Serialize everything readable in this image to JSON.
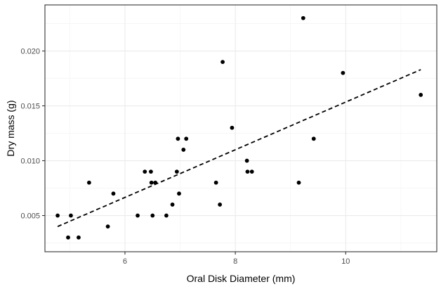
{
  "chart_data": {
    "type": "scatter",
    "title": "",
    "xlabel": "Oral Disk Diameter (mm)",
    "ylabel": "Dry mass (g)",
    "xlim": [
      4.55,
      11.65
    ],
    "ylim": [
      0.0017,
      0.0242
    ],
    "x_major_ticks": [
      6,
      8,
      10
    ],
    "x_minor_ticks": [
      5,
      7,
      9,
      11
    ],
    "y_major_ticks": [
      0.005,
      0.01,
      0.015,
      0.02
    ],
    "y_minor_ticks": [
      0.0025,
      0.0075,
      0.0125,
      0.0175,
      0.0225
    ],
    "x_tick_labels": [
      "6",
      "8",
      "10"
    ],
    "y_tick_labels": [
      "0.005",
      "0.010",
      "0.015",
      "0.020"
    ],
    "grid": true,
    "point_color": "#000000",
    "points": [
      {
        "x": 4.78,
        "y": 0.005
      },
      {
        "x": 4.97,
        "y": 0.003
      },
      {
        "x": 5.02,
        "y": 0.005
      },
      {
        "x": 5.16,
        "y": 0.003
      },
      {
        "x": 5.35,
        "y": 0.008
      },
      {
        "x": 5.69,
        "y": 0.004
      },
      {
        "x": 5.79,
        "y": 0.007
      },
      {
        "x": 6.23,
        "y": 0.005
      },
      {
        "x": 6.36,
        "y": 0.009
      },
      {
        "x": 6.47,
        "y": 0.009
      },
      {
        "x": 6.48,
        "y": 0.008
      },
      {
        "x": 6.5,
        "y": 0.005
      },
      {
        "x": 6.55,
        "y": 0.008
      },
      {
        "x": 6.75,
        "y": 0.005
      },
      {
        "x": 6.86,
        "y": 0.006
      },
      {
        "x": 6.94,
        "y": 0.009
      },
      {
        "x": 6.96,
        "y": 0.012
      },
      {
        "x": 6.98,
        "y": 0.007
      },
      {
        "x": 7.06,
        "y": 0.011
      },
      {
        "x": 7.11,
        "y": 0.012
      },
      {
        "x": 7.65,
        "y": 0.008
      },
      {
        "x": 7.72,
        "y": 0.006
      },
      {
        "x": 7.77,
        "y": 0.019
      },
      {
        "x": 7.94,
        "y": 0.013
      },
      {
        "x": 8.21,
        "y": 0.01
      },
      {
        "x": 8.22,
        "y": 0.009
      },
      {
        "x": 8.3,
        "y": 0.009
      },
      {
        "x": 9.15,
        "y": 0.008
      },
      {
        "x": 9.23,
        "y": 0.023
      },
      {
        "x": 9.42,
        "y": 0.012
      },
      {
        "x": 9.95,
        "y": 0.018
      },
      {
        "x": 11.36,
        "y": 0.016
      }
    ],
    "trend_line": {
      "style": "dashed",
      "x": [
        4.78,
        11.36
      ],
      "y": [
        0.004,
        0.0183
      ]
    }
  }
}
